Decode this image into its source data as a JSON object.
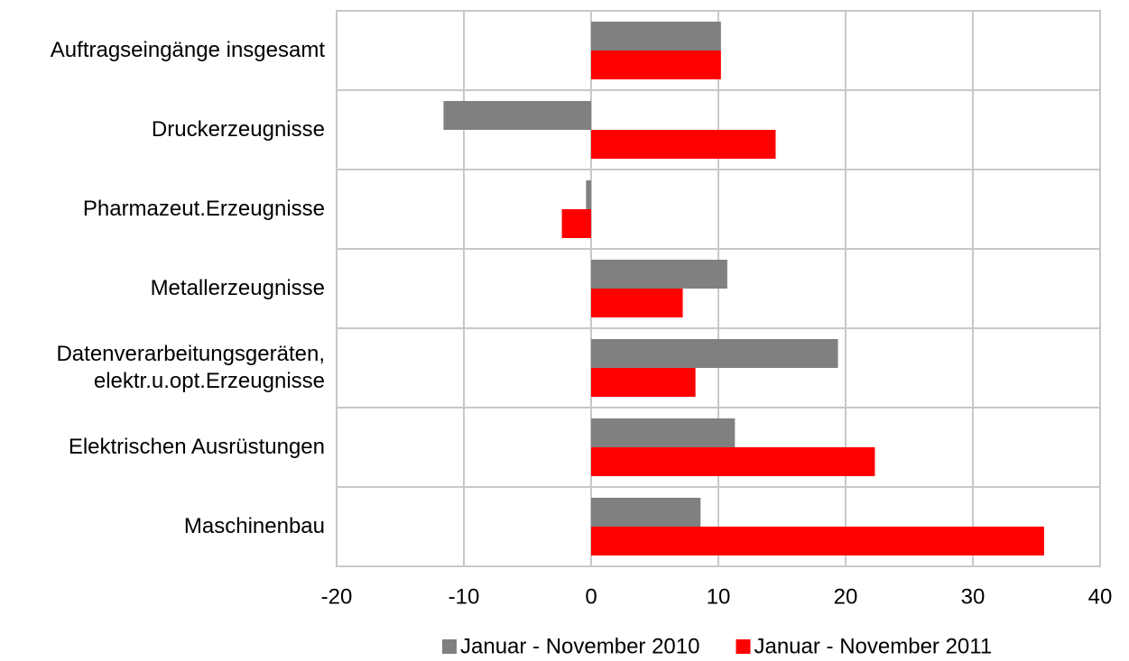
{
  "chart_data": {
    "type": "hbar",
    "categories": [
      "Auftragseingänge insgesamt",
      "Druckerzeugnisse",
      "Pharmazeut.Erzeugnisse",
      "Metallerzeugnisse",
      "Datenverarbeitungsgeräten,\nelektr.u.opt.Erzeugnisse",
      "Elektrischen Ausrüstungen",
      "Maschinenbau"
    ],
    "series": [
      {
        "name": "Januar - November 2010",
        "color": "#808080",
        "values": [
          10.2,
          -11.6,
          -0.4,
          10.7,
          19.4,
          11.3,
          8.6
        ]
      },
      {
        "name": "Januar - November 2011",
        "color": "#ff0000",
        "values": [
          10.2,
          14.5,
          -2.3,
          7.2,
          8.2,
          22.3,
          35.6
        ]
      }
    ],
    "xlim": [
      -20,
      40
    ],
    "xticks": [
      -20,
      -10,
      0,
      10,
      20,
      30,
      40
    ],
    "grid": true,
    "legend": "bottom"
  }
}
